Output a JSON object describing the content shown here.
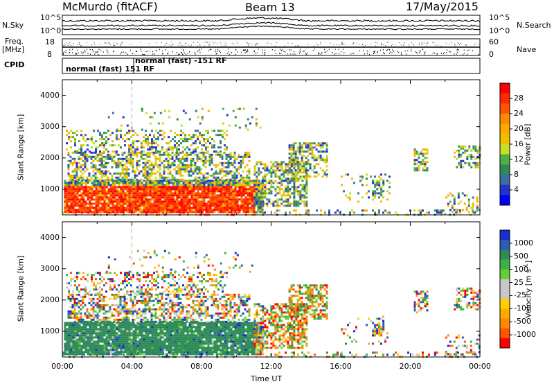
{
  "header": {
    "station": "McMurdo (fitACF)",
    "beam": "Beam 13",
    "date": "17/May/2015"
  },
  "top_panel": {
    "left_label": "N.Sky",
    "right_label": "N.Search",
    "left_ticks": [
      "10^5",
      "10^0"
    ],
    "right_ticks": [
      "10^5",
      "10^0"
    ]
  },
  "freq_panel": {
    "left_label_line1": "Freq.",
    "left_label_line2": "[MHz]",
    "left_ticks": [
      "18",
      "8"
    ],
    "right_label": "Nave",
    "right_ticks": [
      "60",
      "0"
    ]
  },
  "cpid_panel": {
    "label": "CPID",
    "mode1": "normal (fast) 151 RF",
    "mode2": "normal (fast) -151 RF"
  },
  "chart_data": [
    {
      "type": "heatmap",
      "quantity": "Power",
      "ylabel": "Slant Range [km]",
      "xlabel": "",
      "y_ticks": [
        "4000",
        "3000",
        "2000",
        "1000"
      ],
      "ylim": [
        180,
        4500
      ],
      "colorbar_label": "Power [dB]",
      "colorbar_ticks": [
        "28",
        "24",
        "20",
        "16",
        "12",
        "8",
        "4"
      ],
      "colorbar_colors": [
        "#ff0000",
        "#ff2a00",
        "#ff5500",
        "#ff8c00",
        "#ffaa00",
        "#f0c000",
        "#c8dc28",
        "#50b040",
        "#2e8b57",
        "#3a6fa0",
        "#2233cc",
        "#0000ff"
      ]
    },
    {
      "type": "heatmap",
      "quantity": "Velocity",
      "ylabel": "Slant Range [km]",
      "xlabel": "Time UT",
      "y_ticks": [
        "4000",
        "3000",
        "2000",
        "1000"
      ],
      "ylim": [
        180,
        4500
      ],
      "x_ticks": [
        "00:00",
        "04:00",
        "08:00",
        "12:00",
        "16:00",
        "20:00",
        "00:00"
      ],
      "colorbar_label": "Velocity [m s",
      "colorbar_label_sup": "-1",
      "colorbar_label_end": "]",
      "colorbar_ticks": [
        "1000",
        "500",
        "100",
        "25",
        "-25",
        "-100",
        "-500",
        "-1000"
      ],
      "colorbar_colors": [
        "#1a2fd0",
        "#2a5cb8",
        "#2e8b57",
        "#3cb043",
        "#66cc33",
        "#c8c8c8",
        "#c8c8c8",
        "#ffd000",
        "#ffaa00",
        "#ff8800",
        "#ff5500",
        "#ff0000"
      ]
    }
  ]
}
